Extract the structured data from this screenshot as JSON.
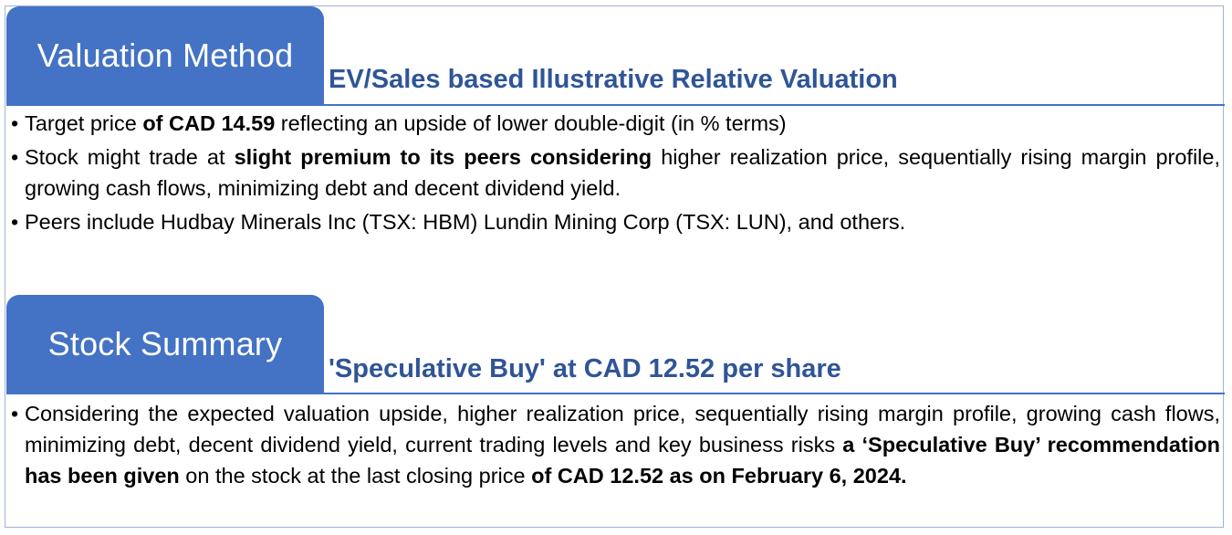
{
  "valuation": {
    "tab_label": "Valuation Method",
    "heading": "EV/Sales based Illustrative Relative Valuation",
    "bullet1": {
      "a": "Target price ",
      "b": "of CAD 14.59",
      "c": " reflecting an upside of lower double-digit (in % terms)"
    },
    "bullet2": {
      "a": "Stock might trade at ",
      "b": "slight premium to its peers considering",
      "c": "  higher realization price, sequentially rising margin profile, growing cash flows, minimizing debt and decent dividend yield."
    },
    "bullet3": {
      "a": "Peers include Hudbay Minerals Inc (TSX: HBM) Lundin Mining Corp (TSX: LUN), and others."
    }
  },
  "summary": {
    "tab_label": "Stock Summary",
    "heading": "'Speculative Buy' at CAD 12.52 per share",
    "bullet1": {
      "a": "Considering the expected valuation upside, higher realization price, sequentially rising margin profile, growing cash flows, minimizing debt, decent dividend yield, current trading levels and key business risks ",
      "b": "a ‘Speculative Buy’ recommendation has been given",
      "c": " on the stock at the last closing price ",
      "d": "of CAD 12.52 as on February 6, 2024."
    }
  },
  "colors": {
    "tab_fill": "#4472c4",
    "heading_text": "#2f5597",
    "frame_border": "#9fb3d6"
  }
}
